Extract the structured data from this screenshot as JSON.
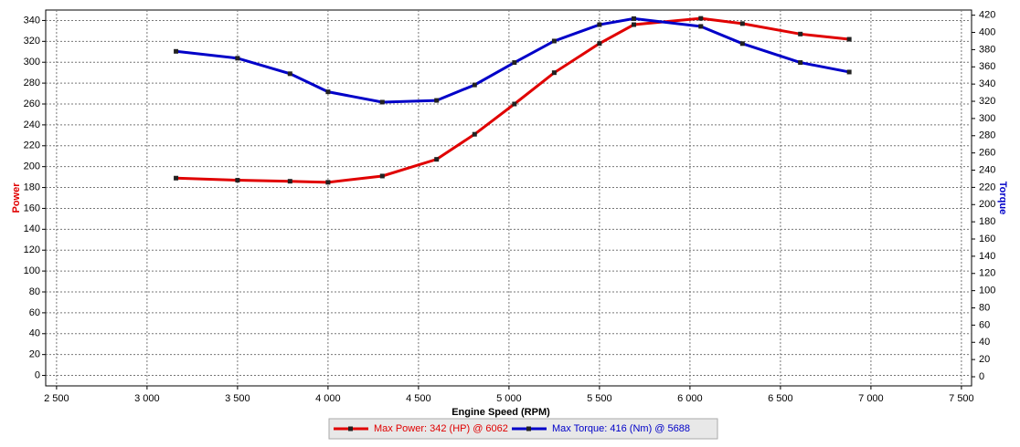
{
  "chart_data": {
    "type": "line",
    "x_label": "Engine Speed (RPM)",
    "y_label": "Power",
    "y2_label": "Torque",
    "x": [
      3160,
      3500,
      3790,
      4000,
      4300,
      4600,
      4810,
      5030,
      5250,
      5500,
      5690,
      6060,
      6290,
      6610,
      6880
    ],
    "series": [
      {
        "name": "Max Power: 342 (HP) @ 6062",
        "color": "#e00000",
        "axis": "y",
        "values": [
          189,
          187,
          186,
          185,
          191,
          207,
          231,
          260,
          290,
          318,
          336,
          342,
          337,
          327,
          322
        ]
      },
      {
        "name": "Max Torque: 416 (Nm) @ 5688",
        "color": "#0000c8",
        "axis": "y2",
        "values": [
          378,
          370,
          352,
          331,
          319,
          321,
          339,
          365,
          390,
          409,
          416,
          407,
          387,
          365,
          354
        ]
      }
    ],
    "xlim": [
      2440,
      7556
    ],
    "xticks": [
      {
        "value": 2500,
        "label": "2 500"
      },
      {
        "value": 3000,
        "label": "3 000"
      },
      {
        "value": 3500,
        "label": "3 500"
      },
      {
        "value": 4000,
        "label": "4 000"
      },
      {
        "value": 4500,
        "label": "4 500"
      },
      {
        "value": 5000,
        "label": "5 000"
      },
      {
        "value": 5500,
        "label": "5 500"
      },
      {
        "value": 6000,
        "label": "6 000"
      },
      {
        "value": 6500,
        "label": "6 500"
      },
      {
        "value": 7000,
        "label": "7 000"
      },
      {
        "value": 7500,
        "label": "7 500"
      }
    ],
    "ylim": [
      -10,
      350
    ],
    "yticks": [
      0,
      20,
      40,
      60,
      80,
      100,
      120,
      140,
      160,
      180,
      200,
      220,
      240,
      260,
      280,
      300,
      320,
      340
    ],
    "y2lim": [
      -10.6,
      426
    ],
    "y2ticks": [
      0,
      20,
      40,
      60,
      80,
      100,
      120,
      140,
      160,
      180,
      200,
      220,
      240,
      260,
      280,
      300,
      320,
      340,
      360,
      380,
      400,
      420
    ],
    "grid": true
  }
}
